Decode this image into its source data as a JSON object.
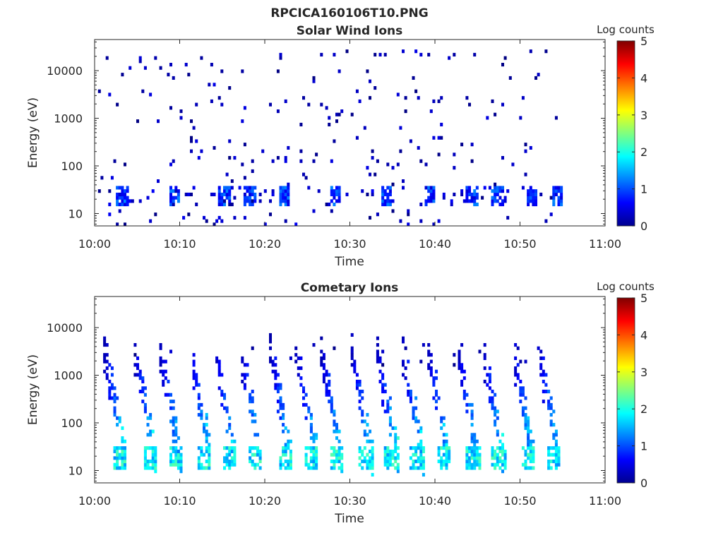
{
  "figure": {
    "filename": "RPCICA160106T10.PNG"
  },
  "chart_data": [
    {
      "type": "heatmap",
      "title": "Solar Wind Ions",
      "xlabel": "Time",
      "ylabel": "Energy (eV)",
      "x_range": [
        "10:00",
        "11:00"
      ],
      "x_ticks": [
        "10:00",
        "10:10",
        "10:20",
        "10:30",
        "10:40",
        "10:50",
        "11:00"
      ],
      "y_scale": "log",
      "y_range": [
        5.5,
        45000
      ],
      "y_ticks": [
        10,
        100,
        1000,
        10000
      ],
      "y_tick_labels": [
        "10",
        "100",
        "1000",
        "10000"
      ],
      "data_end_time": "10:55",
      "colorbar": {
        "label": "Log counts",
        "range": [
          0,
          5
        ],
        "ticks": [
          "0",
          "1",
          "2",
          "3",
          "4",
          "5"
        ]
      },
      "features": {
        "sparse_background": {
          "energy_range": [
            40,
            30000
          ],
          "log_counts": [
            0,
            0.5
          ]
        },
        "low_energy_band": {
          "energy_range": [
            15,
            35
          ],
          "bursts_start_minutes": [
            2.5,
            8.5,
            14.5,
            17.5,
            21.5,
            27.5,
            33.5,
            38.5,
            43.5,
            46.5,
            50.5,
            53.5
          ],
          "peak_log_counts": 1.3
        }
      }
    },
    {
      "type": "heatmap",
      "title": "Cometary Ions",
      "xlabel": "Time",
      "ylabel": "Energy (eV)",
      "x_range": [
        "10:00",
        "11:00"
      ],
      "x_ticks": [
        "10:00",
        "10:10",
        "10:20",
        "10:30",
        "10:40",
        "10:50",
        "11:00"
      ],
      "y_scale": "log",
      "y_range": [
        5.5,
        45000
      ],
      "y_ticks": [
        10,
        100,
        1000,
        10000
      ],
      "y_tick_labels": [
        "10",
        "100",
        "1000",
        "10000"
      ],
      "data_end_time": "10:55",
      "colorbar": {
        "label": "Log counts",
        "range": [
          0,
          5
        ],
        "ticks": [
          "0",
          "1",
          "2",
          "3",
          "4",
          "5"
        ]
      },
      "features": {
        "periodic_dispersed_structures": {
          "start_minutes": [
            1.0,
            4.5,
            7.5,
            11.0,
            14.0,
            17.0,
            20.5,
            23.5,
            26.5,
            30.0,
            33.0,
            36.0,
            39.0,
            42.5,
            45.5,
            49.0,
            52.0
          ],
          "start_energy_eV": 3000,
          "end_energy_eV": 15,
          "peak_log_counts_low_energy": 2.3
        },
        "sparse_high_energy": {
          "energy_range": [
            1500,
            6000
          ],
          "log_counts": [
            0,
            0.5
          ]
        }
      }
    }
  ]
}
